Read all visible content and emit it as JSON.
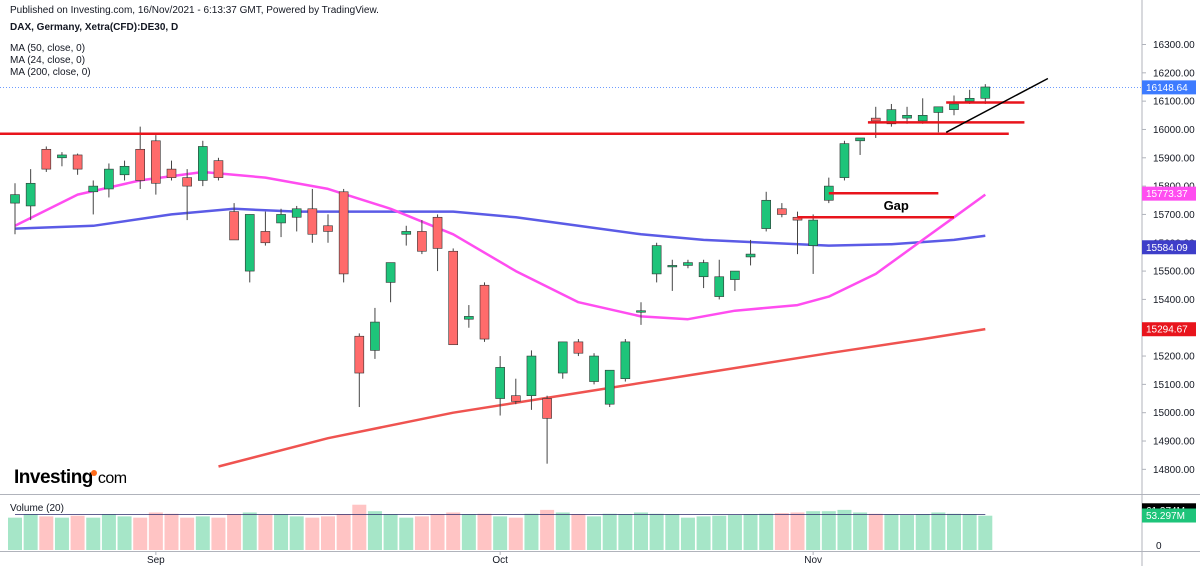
{
  "header": {
    "published": "Published on Investing.com, 16/Nov/2021 - 6:13:37 GMT, Powered by TradingView.",
    "symbol": "DAX, Germany, Xetra(CFD):DE30, D",
    "ma_legend": [
      "MA (50, close, 0)",
      "MA (24, close, 0)",
      "MA (200, close, 0)"
    ]
  },
  "logo": {
    "main": "Investing",
    "suffix": "com"
  },
  "colors": {
    "up": "#1ec47a",
    "down": "#ff6b6b",
    "wick": "#444444",
    "ma50": "#5b5be6",
    "ma24": "#ff4df0",
    "ma200": "#ef5350",
    "annotation": "#e8141c",
    "trendline": "#000000",
    "current_line": "#3d7bff",
    "vol_up": "#a6e6c8",
    "vol_down": "#ffc4c4"
  },
  "chart_data": {
    "type": "candlestick",
    "y_range": [
      14720,
      16330
    ],
    "y_ticks": [
      14800,
      14900,
      15000,
      15100,
      15200,
      15300,
      15400,
      15500,
      15600,
      15700,
      15800,
      15900,
      16000,
      16100,
      16200,
      16300
    ],
    "y_tick_labels": [
      "14800.00",
      "14900.00",
      "15000.00",
      "15100.00",
      "15200.00",
      "15300.00",
      "15400.00",
      "15500.00",
      "15600.00",
      "15700.00",
      "15800.00",
      "15900.00",
      "16000.00",
      "16100.00",
      "16200.00",
      "16300.00"
    ],
    "x_labels": [
      {
        "label": "Sep",
        "index": 9
      },
      {
        "label": "Oct",
        "index": 31
      },
      {
        "label": "Nov",
        "index": 51
      }
    ],
    "candles": [
      {
        "o": 15740,
        "h": 15810,
        "l": 15630,
        "c": 15770
      },
      {
        "o": 15730,
        "h": 15860,
        "l": 15680,
        "c": 15810
      },
      {
        "o": 15930,
        "h": 15940,
        "l": 15850,
        "c": 15860
      },
      {
        "o": 15900,
        "h": 15920,
        "l": 15870,
        "c": 15910
      },
      {
        "o": 15910,
        "h": 15915,
        "l": 15840,
        "c": 15860
      },
      {
        "o": 15780,
        "h": 15820,
        "l": 15700,
        "c": 15800
      },
      {
        "o": 15790,
        "h": 15880,
        "l": 15760,
        "c": 15860
      },
      {
        "o": 15840,
        "h": 15890,
        "l": 15820,
        "c": 15870
      },
      {
        "o": 15930,
        "h": 16010,
        "l": 15790,
        "c": 15820
      },
      {
        "o": 15960,
        "h": 15980,
        "l": 15770,
        "c": 15810
      },
      {
        "o": 15860,
        "h": 15890,
        "l": 15820,
        "c": 15830
      },
      {
        "o": 15830,
        "h": 15860,
        "l": 15680,
        "c": 15800
      },
      {
        "o": 15820,
        "h": 15960,
        "l": 15800,
        "c": 15940
      },
      {
        "o": 15890,
        "h": 15900,
        "l": 15820,
        "c": 15830
      },
      {
        "o": 15710,
        "h": 15740,
        "l": 15610,
        "c": 15610
      },
      {
        "o": 15500,
        "h": 15700,
        "l": 15460,
        "c": 15700
      },
      {
        "o": 15640,
        "h": 15710,
        "l": 15590,
        "c": 15600
      },
      {
        "o": 15670,
        "h": 15720,
        "l": 15620,
        "c": 15700
      },
      {
        "o": 15690,
        "h": 15730,
        "l": 15640,
        "c": 15720
      },
      {
        "o": 15720,
        "h": 15790,
        "l": 15600,
        "c": 15630
      },
      {
        "o": 15660,
        "h": 15700,
        "l": 15600,
        "c": 15640
      },
      {
        "o": 15780,
        "h": 15790,
        "l": 15460,
        "c": 15490
      },
      {
        "o": 15270,
        "h": 15280,
        "l": 15020,
        "c": 15140
      },
      {
        "o": 15220,
        "h": 15370,
        "l": 15190,
        "c": 15320
      },
      {
        "o": 15460,
        "h": 15530,
        "l": 15390,
        "c": 15530
      },
      {
        "o": 15630,
        "h": 15660,
        "l": 15590,
        "c": 15640
      },
      {
        "o": 15640,
        "h": 15680,
        "l": 15560,
        "c": 15570
      },
      {
        "o": 15690,
        "h": 15700,
        "l": 15500,
        "c": 15580
      },
      {
        "o": 15570,
        "h": 15580,
        "l": 15240,
        "c": 15240
      },
      {
        "o": 15330,
        "h": 15380,
        "l": 15300,
        "c": 15340
      },
      {
        "o": 15450,
        "h": 15460,
        "l": 15250,
        "c": 15260
      },
      {
        "o": 15050,
        "h": 15200,
        "l": 14990,
        "c": 15160
      },
      {
        "o": 15060,
        "h": 15120,
        "l": 15030,
        "c": 15040
      },
      {
        "o": 15060,
        "h": 15220,
        "l": 15010,
        "c": 15200
      },
      {
        "o": 15050,
        "h": 15060,
        "l": 14820,
        "c": 14980
      },
      {
        "o": 15140,
        "h": 15250,
        "l": 15120,
        "c": 15250
      },
      {
        "o": 15250,
        "h": 15260,
        "l": 15200,
        "c": 15210
      },
      {
        "o": 15110,
        "h": 15210,
        "l": 15100,
        "c": 15200
      },
      {
        "o": 15030,
        "h": 15140,
        "l": 15020,
        "c": 15150
      },
      {
        "o": 15120,
        "h": 15260,
        "l": 15110,
        "c": 15250
      },
      {
        "o": 15360,
        "h": 15390,
        "l": 15310,
        "c": 15360
      },
      {
        "o": 15490,
        "h": 15600,
        "l": 15460,
        "c": 15590
      },
      {
        "o": 15520,
        "h": 15540,
        "l": 15430,
        "c": 15520
      },
      {
        "o": 15520,
        "h": 15540,
        "l": 15510,
        "c": 15530
      },
      {
        "o": 15480,
        "h": 15540,
        "l": 15440,
        "c": 15530
      },
      {
        "o": 15410,
        "h": 15540,
        "l": 15400,
        "c": 15480
      },
      {
        "o": 15470,
        "h": 15500,
        "l": 15430,
        "c": 15500
      },
      {
        "o": 15550,
        "h": 15610,
        "l": 15520,
        "c": 15560
      },
      {
        "o": 15650,
        "h": 15780,
        "l": 15640,
        "c": 15750
      },
      {
        "o": 15720,
        "h": 15740,
        "l": 15690,
        "c": 15700
      },
      {
        "o": 15690,
        "h": 15710,
        "l": 15560,
        "c": 15680
      },
      {
        "o": 15590,
        "h": 15700,
        "l": 15490,
        "c": 15680
      },
      {
        "o": 15750,
        "h": 15830,
        "l": 15740,
        "c": 15800
      },
      {
        "o": 15830,
        "h": 15960,
        "l": 15820,
        "c": 15950
      },
      {
        "o": 15960,
        "h": 15970,
        "l": 15910,
        "c": 15970
      },
      {
        "o": 16040,
        "h": 16080,
        "l": 15970,
        "c": 16030
      },
      {
        "o": 16020,
        "h": 16090,
        "l": 16010,
        "c": 16070
      },
      {
        "o": 16040,
        "h": 16080,
        "l": 16020,
        "c": 16050
      },
      {
        "o": 16030,
        "h": 16110,
        "l": 16020,
        "c": 16050
      },
      {
        "o": 16060,
        "h": 16080,
        "l": 15990,
        "c": 16080
      },
      {
        "o": 16070,
        "h": 16120,
        "l": 16050,
        "c": 16090
      },
      {
        "o": 16100,
        "h": 16140,
        "l": 16090,
        "c": 16110
      },
      {
        "o": 16110,
        "h": 16160,
        "l": 16090,
        "c": 16150
      }
    ],
    "ma": [
      {
        "name": "MA (50, close, 0)",
        "color_key": "ma50",
        "points": [
          [
            0,
            15650
          ],
          [
            5,
            15660
          ],
          [
            10,
            15700
          ],
          [
            14,
            15720
          ],
          [
            18,
            15710
          ],
          [
            22,
            15710
          ],
          [
            28,
            15710
          ],
          [
            32,
            15690
          ],
          [
            36,
            15660
          ],
          [
            40,
            15630
          ],
          [
            44,
            15610
          ],
          [
            48,
            15600
          ],
          [
            52,
            15590
          ],
          [
            56,
            15595
          ],
          [
            60,
            15610
          ],
          [
            62,
            15625
          ]
        ]
      },
      {
        "name": "MA (24, close, 0)",
        "color_key": "ma24",
        "points": [
          [
            0,
            15660
          ],
          [
            4,
            15770
          ],
          [
            8,
            15820
          ],
          [
            12,
            15850
          ],
          [
            16,
            15830
          ],
          [
            20,
            15790
          ],
          [
            24,
            15720
          ],
          [
            28,
            15630
          ],
          [
            32,
            15500
          ],
          [
            36,
            15390
          ],
          [
            40,
            15340
          ],
          [
            43,
            15330
          ],
          [
            46,
            15360
          ],
          [
            50,
            15380
          ],
          [
            52,
            15410
          ],
          [
            55,
            15490
          ],
          [
            58,
            15610
          ],
          [
            60,
            15690
          ],
          [
            62,
            15770
          ]
        ]
      },
      {
        "name": "MA (200, close, 0)",
        "color_key": "ma200",
        "points": [
          [
            13,
            14810
          ],
          [
            20,
            14910
          ],
          [
            28,
            15000
          ],
          [
            36,
            15070
          ],
          [
            44,
            15140
          ],
          [
            52,
            15210
          ],
          [
            58,
            15260
          ],
          [
            62,
            15295
          ]
        ]
      }
    ],
    "annotations": {
      "gap_label": "Gap",
      "resistance_lines": [
        {
          "from": -1,
          "to": 63.5,
          "value": 15985
        },
        {
          "from": 54.5,
          "to": 64.5,
          "value": 16025
        },
        {
          "from": 59.5,
          "to": 64.5,
          "value": 16095
        },
        {
          "from": 52,
          "to": 59,
          "value": 15775
        },
        {
          "from": 50,
          "to": 60,
          "value": 15690
        }
      ],
      "trendline": {
        "from": [
          59.5,
          15990
        ],
        "to": [
          66,
          16180
        ]
      },
      "current_price": 16148.64
    },
    "price_tags": [
      {
        "label": "16148.64",
        "value": 16148.64,
        "bg": "#3d7bff"
      },
      {
        "label": "15773.37",
        "value": 15773.37,
        "bg": "#ff4df0"
      },
      {
        "label": "15584.09",
        "value": 15584.09,
        "bg": "#3e3ec9"
      },
      {
        "label": "15294.67",
        "value": 15294.67,
        "bg": "#e8141c"
      }
    ],
    "volume": {
      "title": "Volume (20)",
      "range": [
        0,
        68
      ],
      "ticks": [
        {
          "label": "0",
          "value": 0
        }
      ],
      "tags": [
        {
          "label": "61.374M",
          "value": 61.374,
          "bg": "#000000"
        },
        {
          "label": "53.297M",
          "value": 53.297,
          "bg": "#1ec47a"
        }
      ],
      "values": [
        50,
        55,
        52,
        50,
        53,
        50,
        55,
        52,
        50,
        58,
        56,
        50,
        52,
        50,
        55,
        58,
        54,
        55,
        52,
        50,
        52,
        55,
        70,
        60,
        55,
        50,
        52,
        55,
        58,
        55,
        56,
        52,
        50,
        56,
        62,
        58,
        55,
        52,
        56,
        55,
        58,
        56,
        55,
        50,
        52,
        53,
        54,
        55,
        56,
        57,
        58,
        60,
        60,
        62,
        58,
        56,
        55,
        54,
        55,
        58,
        56,
        55,
        53
      ],
      "ma_value": 55
    }
  }
}
